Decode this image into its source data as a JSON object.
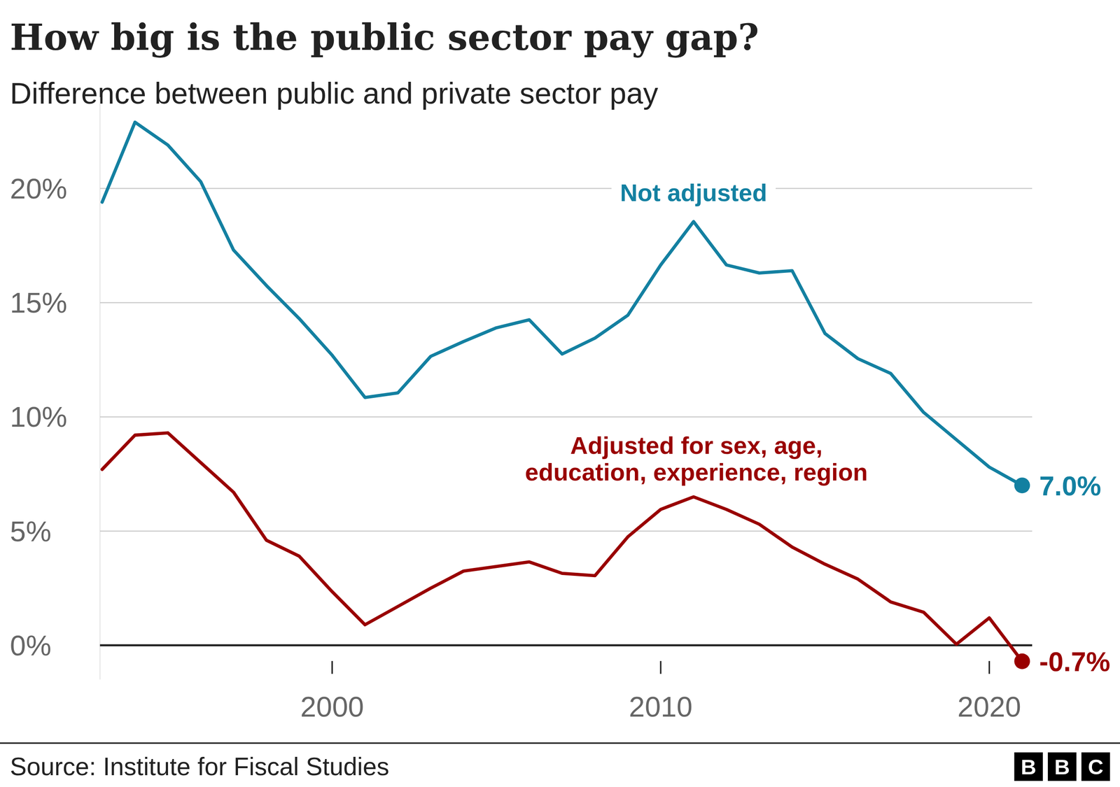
{
  "chart_data": {
    "type": "line",
    "title": "How big is the public sector pay gap?",
    "subtitle": "Difference between public and private sector pay",
    "source": "Source: Institute for Fiscal Studies",
    "logo": "BBC",
    "x": [
      1993,
      1994,
      1995,
      1996,
      1997,
      1998,
      1999,
      2000,
      2001,
      2002,
      2003,
      2004,
      2005,
      2006,
      2007,
      2008,
      2009,
      2010,
      2011,
      2012,
      2013,
      2014,
      2015,
      2016,
      2017,
      2018,
      2019,
      2020,
      2021
    ],
    "series": [
      {
        "name": "Not adjusted",
        "color": "#1380a1",
        "values": [
          19.4,
          22.9,
          21.9,
          20.3,
          17.3,
          15.75,
          14.3,
          12.7,
          10.85,
          11.05,
          12.65,
          13.3,
          13.9,
          14.25,
          12.75,
          13.45,
          14.45,
          16.65,
          18.55,
          16.65,
          16.3,
          16.4,
          13.65,
          12.55,
          11.9,
          10.2,
          9.0,
          7.8,
          7.0
        ],
        "value_labels": [
          null,
          null,
          null,
          null,
          null,
          null,
          null,
          null,
          null,
          null,
          null,
          null,
          null,
          null,
          null,
          null,
          null,
          null,
          null,
          null,
          null,
          null,
          null,
          null,
          null,
          null,
          null,
          null,
          "7.0%"
        ]
      },
      {
        "name": "Adjusted for sex, age, education, experience, region",
        "color": "#990000",
        "values": [
          7.7,
          9.2,
          9.3,
          8.0,
          6.7,
          4.6,
          3.9,
          2.35,
          0.9,
          1.7,
          2.5,
          3.25,
          3.45,
          3.65,
          3.15,
          3.05,
          4.75,
          5.95,
          6.5,
          5.95,
          5.3,
          4.3,
          3.55,
          2.9,
          1.9,
          1.45,
          0.05,
          1.2,
          -0.7
        ],
        "value_labels": [
          null,
          null,
          null,
          null,
          null,
          null,
          null,
          null,
          null,
          null,
          null,
          null,
          null,
          null,
          null,
          null,
          null,
          null,
          null,
          null,
          null,
          null,
          null,
          null,
          null,
          null,
          null,
          null,
          "-0.7%"
        ]
      }
    ],
    "xlim": [
      1993,
      2021
    ],
    "xticks": [
      2000,
      2010,
      2020
    ],
    "ylim": [
      -1.5,
      24
    ],
    "yticks": [
      {
        "value": 0,
        "label": "0%"
      },
      {
        "value": 5,
        "label": "5%"
      },
      {
        "value": 10,
        "label": "10%"
      },
      {
        "value": 15,
        "label": "15%"
      },
      {
        "value": 20,
        "label": "20%"
      }
    ],
    "grid": true,
    "data_labels": true,
    "marker": "dot"
  }
}
